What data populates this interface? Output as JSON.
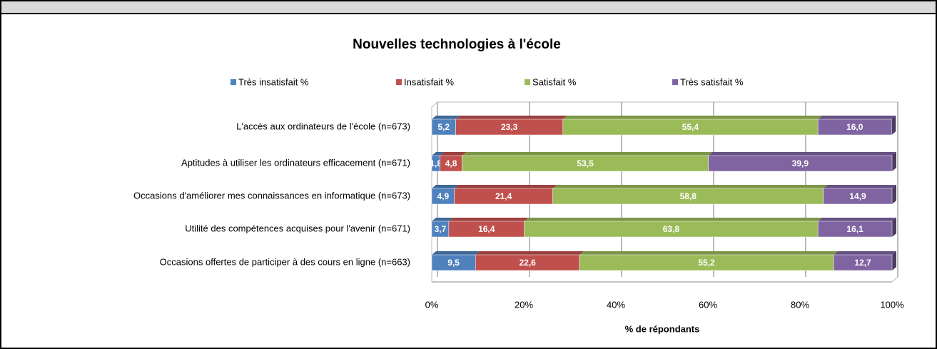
{
  "chart_data": {
    "type": "bar",
    "orientation": "horizontal",
    "stacked": true,
    "title": "Nouvelles technologies à l'école",
    "xlabel": "% de répondants",
    "categories": [
      "L'accès aux ordinateurs de l'école (n=673)",
      "Aptitudes à utiliser les ordinateurs efficacement (n=671)",
      "Occasions d'améliorer mes connaissances en informatique  (n=673)",
      "Utilité des compétences acquises pour l'avenir (n=671)",
      "Occasions offertes de participer à des cours en ligne  (n=663)"
    ],
    "series": [
      {
        "name": "Très insatisfait  %",
        "color": "#4f81bd",
        "values": [
          5.2,
          1.8,
          4.9,
          3.7,
          9.5
        ],
        "value_labels": [
          "5,2",
          "1,8",
          "4,9",
          "3,7",
          "9,5"
        ]
      },
      {
        "name": "Insatisfait  %",
        "color": "#c0504d",
        "values": [
          23.3,
          4.8,
          21.4,
          16.4,
          22.6
        ],
        "value_labels": [
          "23,3",
          "4,8",
          "21,4",
          "16,4",
          "22,6"
        ]
      },
      {
        "name": "Satisfait  %",
        "color": "#9bbb59",
        "values": [
          55.4,
          53.5,
          58.8,
          63.8,
          55.2
        ],
        "value_labels": [
          "55,4",
          "53,5",
          "58,8",
          "63,8",
          "55,2"
        ]
      },
      {
        "name": "Très satisfait  %",
        "color": "#8064a2",
        "values": [
          16.0,
          39.9,
          14.9,
          16.1,
          12.7
        ],
        "value_labels": [
          "16,0",
          "39,9",
          "14,9",
          "16,1",
          "12,7"
        ]
      }
    ],
    "xlim": [
      0,
      100
    ],
    "xticks": [
      {
        "value": 0,
        "label": "0%"
      },
      {
        "value": 20,
        "label": "20%"
      },
      {
        "value": 40,
        "label": "40%"
      },
      {
        "value": 60,
        "label": "60%"
      },
      {
        "value": 80,
        "label": "80%"
      },
      {
        "value": 100,
        "label": "100%"
      }
    ],
    "legend": "top",
    "grid": true
  }
}
